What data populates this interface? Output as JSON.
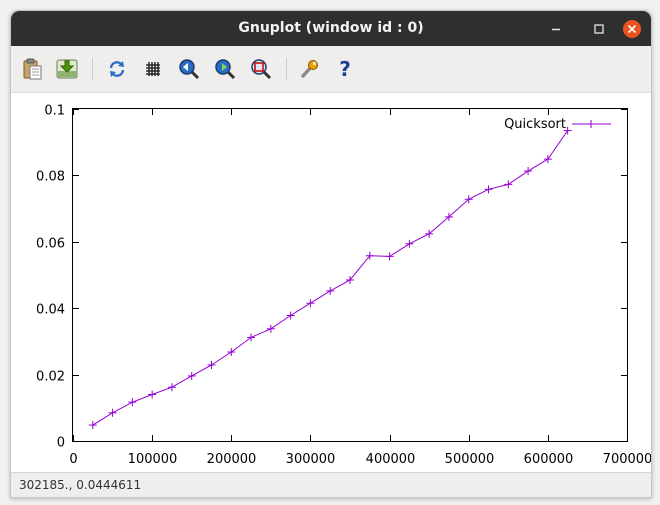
{
  "window": {
    "title": "Gnuplot (window id : 0)"
  },
  "toolbar": {
    "items": [
      {
        "name": "copy-clipboard-icon"
      },
      {
        "name": "export-icon"
      },
      {
        "name": "replot-icon"
      },
      {
        "name": "grid-icon"
      },
      {
        "name": "zoom-previous-icon"
      },
      {
        "name": "zoom-next-icon"
      },
      {
        "name": "autoscale-icon"
      },
      {
        "name": "settings-icon"
      },
      {
        "name": "help-icon"
      }
    ]
  },
  "status": {
    "coords": "302185., 0.0444611"
  },
  "colors": {
    "series": "#9400d3",
    "titlebar": "#2f2f2f",
    "close": "#e95420"
  },
  "chart_data": {
    "type": "line",
    "xlim": [
      0,
      700000
    ],
    "ylim": [
      0,
      0.1
    ],
    "x_ticks": [
      0,
      100000,
      200000,
      300000,
      400000,
      500000,
      600000,
      700000
    ],
    "x_tick_labels": [
      "0",
      "100000",
      "200000",
      "300000",
      "400000",
      "500000",
      "600000",
      "700000"
    ],
    "y_ticks": [
      0,
      0.02,
      0.04,
      0.06,
      0.08,
      0.1
    ],
    "y_tick_labels": [
      "0",
      "0.02",
      "0.04",
      "0.06",
      "0.08",
      "0.1"
    ],
    "grid": false,
    "legend_position": "top-right",
    "series": [
      {
        "name": "Quicksort",
        "marker": "+",
        "x": [
          25000,
          50000,
          75000,
          100000,
          125000,
          150000,
          175000,
          200000,
          225000,
          250000,
          275000,
          300000,
          325000,
          350000,
          375000,
          400000,
          425000,
          450000,
          475000,
          500000,
          525000,
          550000,
          575000,
          600000,
          625000
        ],
        "y": [
          0.0048,
          0.0085,
          0.0117,
          0.014,
          0.0162,
          0.0196,
          0.0229,
          0.0268,
          0.0312,
          0.0338,
          0.0378,
          0.0415,
          0.0452,
          0.0485,
          0.0558,
          0.0556,
          0.0594,
          0.0624,
          0.0675,
          0.0728,
          0.0758,
          0.0773,
          0.0813,
          0.0849,
          0.0935
        ]
      }
    ]
  }
}
